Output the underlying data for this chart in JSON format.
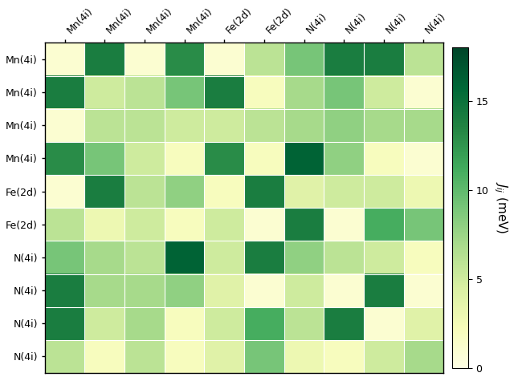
{
  "labels": [
    "Mn(4i)",
    "Mn(4i)",
    "Mn(4i)",
    "Mn(4i)",
    "Fe(2d)",
    "Fe(2d)",
    "N(4i)",
    "N(4i)",
    "N(4i)",
    "N(4i)"
  ],
  "matrix": [
    [
      1.0,
      14.0,
      1.0,
      13.0,
      1.0,
      6.0,
      9.0,
      14.0,
      14.0,
      6.0
    ],
    [
      14.0,
      5.0,
      6.0,
      9.0,
      14.0,
      2.0,
      7.0,
      9.0,
      5.0,
      1.0
    ],
    [
      1.0,
      6.0,
      6.0,
      5.0,
      5.0,
      6.0,
      7.0,
      8.0,
      7.0,
      7.0
    ],
    [
      13.0,
      9.0,
      5.0,
      2.0,
      13.0,
      2.0,
      16.0,
      8.0,
      2.0,
      1.0
    ],
    [
      1.0,
      14.0,
      6.0,
      8.0,
      2.0,
      14.0,
      4.0,
      5.0,
      5.0,
      3.0
    ],
    [
      6.0,
      3.0,
      5.0,
      2.0,
      5.0,
      1.0,
      14.0,
      1.0,
      11.0,
      9.0
    ],
    [
      9.0,
      7.0,
      6.0,
      16.0,
      5.0,
      14.0,
      8.0,
      6.0,
      5.0,
      2.0
    ],
    [
      14.0,
      7.0,
      7.0,
      8.0,
      4.0,
      1.0,
      5.0,
      1.0,
      14.0,
      1.0
    ],
    [
      14.0,
      5.0,
      7.0,
      2.0,
      5.0,
      11.0,
      6.0,
      14.0,
      1.0,
      4.0
    ],
    [
      6.0,
      2.0,
      6.0,
      2.0,
      4.0,
      9.0,
      3.0,
      2.0,
      5.0,
      7.0
    ]
  ],
  "vmin": 0,
  "vmax": 18,
  "cmap": "YlGn",
  "colorbar_label": "$J_{ij}$ (meV)",
  "colorbar_ticks": [
    0,
    5,
    10,
    15
  ],
  "figsize": [
    6.4,
    4.8
  ],
  "dpi": 100
}
